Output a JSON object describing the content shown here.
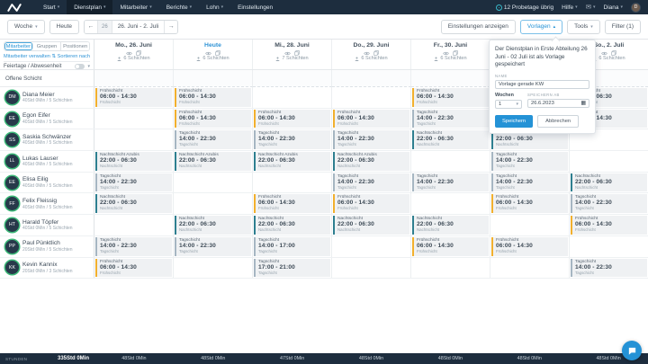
{
  "navbar": {
    "items": [
      {
        "label": "Start",
        "caret": true,
        "active": false
      },
      {
        "label": "Dienstplan",
        "caret": true,
        "active": true
      },
      {
        "label": "Mitarbeiter",
        "caret": true,
        "active": false
      },
      {
        "label": "Berichte",
        "caret": true,
        "active": false
      },
      {
        "label": "Lohn",
        "caret": true,
        "active": false
      },
      {
        "label": "Einstellungen",
        "caret": false,
        "active": false
      }
    ],
    "trial_text": "12 Probetage übrig",
    "help_label": "Hilfe",
    "user_name": "Diana",
    "user_initial": "D"
  },
  "toolbar": {
    "view_select": "Woche",
    "today_button": "Heute",
    "week_number": "26",
    "date_range": "26. Juni - 2. Juli",
    "settings_button": "Einstellungen anzeigen",
    "templates_button": "Vorlagen",
    "tools_button": "Tools",
    "filter_button": "Filter (1)"
  },
  "sidebar": {
    "tabs": [
      {
        "label": "Mitarbeiter",
        "active": true
      },
      {
        "label": "Gruppen",
        "active": false
      },
      {
        "label": "Positionen",
        "active": false
      }
    ],
    "manage_link": "Mitarbeiter verwalten",
    "sort_link": "Sortieren nach",
    "holidays_row": "Feiertage / Abwesenheit",
    "open_shift_label": "Offene Schicht"
  },
  "bottombar": {
    "hours_label": "STUNDEN",
    "total_hours": "335Std 0Min"
  },
  "days": [
    {
      "label": "Mo., 26. Juni",
      "today": false,
      "shifts": "6 Schichten",
      "total": "48Std 0Min"
    },
    {
      "label": "Heute",
      "today": true,
      "shifts": "6 Schichten",
      "total": "48Std 0Min"
    },
    {
      "label": "Mi., 28. Juni",
      "today": false,
      "shifts": "7 Schichten",
      "total": "47Std 0Min"
    },
    {
      "label": "Do., 29. Juni",
      "today": false,
      "shifts": "6 Schichten",
      "total": "48Std 0Min"
    },
    {
      "label": "Fr., 30. Juni",
      "today": false,
      "shifts": "6 Schichten",
      "total": "48Std 0Min"
    },
    {
      "label": "",
      "today": false,
      "shifts": "",
      "total": "48Std 0Min"
    },
    {
      "label": "So., 2. Juli",
      "today": false,
      "shifts": "6 Schichten",
      "total": "48Std 0Min"
    }
  ],
  "shift_colors": {
    "fruh": "#f2b02e",
    "tag": "#a6b6c2",
    "nacht": "#2e7f90"
  },
  "status_ring_color": "#3cb878",
  "accent_color": "#2492d6",
  "employees": [
    {
      "name": "Diana Meier",
      "meta": "40Std 0Min / 5 Schichten",
      "initials": "DM",
      "cells": [
        {
          "variant": "fruh",
          "title": "Frühschicht",
          "time": "06:00 - 14:30",
          "sub": "Frühschicht"
        },
        {
          "variant": "fruh",
          "title": "Frühschicht",
          "time": "06:00 - 14:30",
          "sub": "Frühschicht"
        },
        null,
        null,
        {
          "variant": "fruh",
          "title": "Frühschicht",
          "time": "06:00 - 14:30",
          "sub": "Frühschicht"
        },
        null,
        {
          "variant": "nacht",
          "title": "Nachtschicht",
          "time": "22:00 - 06:30",
          "sub": "Nachtschicht"
        }
      ]
    },
    {
      "name": "Egon Eifer",
      "meta": "40Std 0Min / 5 Schichten",
      "initials": "EE",
      "cells": [
        null,
        {
          "variant": "fruh",
          "title": "Frühschicht",
          "time": "06:00 - 14:30",
          "sub": "Frühschicht"
        },
        {
          "variant": "fruh",
          "title": "Frühschicht",
          "time": "06:00 - 14:30",
          "sub": "Frühschicht"
        },
        {
          "variant": "fruh",
          "title": "Frühschicht",
          "time": "06:00 - 14:30",
          "sub": "Frühschicht"
        },
        {
          "variant": "tag",
          "title": "Tagschicht",
          "time": "14:00 - 22:30",
          "sub": "Tagschicht"
        },
        null,
        {
          "variant": "fruh",
          "title": "Frühschicht",
          "time": "06:00 - 14:30",
          "sub": "Frühschicht"
        }
      ]
    },
    {
      "name": "Saskia Schwänzer",
      "meta": "40Std 0Min / 5 Schichten",
      "initials": "SS",
      "cells": [
        null,
        {
          "variant": "tag",
          "title": "Tagschicht",
          "time": "14:00 - 22:30",
          "sub": "Tagschicht"
        },
        {
          "variant": "tag",
          "title": "Tagschicht",
          "time": "14:00 - 22:30",
          "sub": "Tagschicht"
        },
        {
          "variant": "tag",
          "title": "Tagschicht",
          "time": "14:00 - 22:30",
          "sub": "Tagschicht"
        },
        {
          "variant": "nacht",
          "title": "Nachtschicht",
          "time": "22:00 - 06:30",
          "sub": "Nachtschicht"
        },
        {
          "variant": "nacht",
          "title": "Nachtschicht",
          "time": "22:00 - 06:30",
          "sub": "Nachtschicht"
        },
        null
      ]
    },
    {
      "name": "Lukas Lauser",
      "meta": "40Std 0Min / 5 Schichten",
      "initials": "LL",
      "cells": [
        {
          "variant": "nacht",
          "title": "Nachtschicht Azubis",
          "time": "22:00 - 06:30",
          "sub": "Nachtschicht"
        },
        {
          "variant": "nacht",
          "title": "Nachtschicht Azubis",
          "time": "22:00 - 06:30",
          "sub": "Nachtschicht"
        },
        {
          "variant": "nacht",
          "title": "Nachtschicht Azubis",
          "time": "22:00 - 06:30",
          "sub": "Nachtschicht"
        },
        {
          "variant": "nacht",
          "title": "Nachtschicht Azubis",
          "time": "22:00 - 06:30",
          "sub": "Nachtschicht"
        },
        null,
        {
          "variant": "tag",
          "title": "Tagschicht",
          "time": "14:00 - 22:30",
          "sub": "Tagschicht"
        },
        null
      ]
    },
    {
      "name": "Elisa Eilig",
      "meta": "40Std 0Min / 5 Schichten",
      "initials": "EE",
      "cells": [
        {
          "variant": "tag",
          "title": "Tagschicht",
          "time": "14:00 - 22:30",
          "sub": "Tagschicht"
        },
        null,
        null,
        {
          "variant": "tag",
          "title": "Tagschicht",
          "time": "14:00 - 22:30",
          "sub": "Tagschicht"
        },
        {
          "variant": "tag",
          "title": "Tagschicht",
          "time": "14:00 - 22:30",
          "sub": "Tagschicht"
        },
        {
          "variant": "tag",
          "title": "Tagschicht",
          "time": "14:00 - 22:30",
          "sub": "Tagschicht"
        },
        {
          "variant": "nacht",
          "title": "Nachtschicht",
          "time": "22:00 - 06:30",
          "sub": "Nachtschicht"
        }
      ]
    },
    {
      "name": "Felix Fleissig",
      "meta": "40Std 0Min / 5 Schichten",
      "initials": "FF",
      "cells": [
        {
          "variant": "nacht",
          "title": "Nachtschicht",
          "time": "22:00 - 06:30",
          "sub": "Nachtschicht"
        },
        null,
        {
          "variant": "fruh",
          "title": "Frühschicht",
          "time": "06:00 - 14:30",
          "sub": "Frühschicht"
        },
        {
          "variant": "fruh",
          "title": "Frühschicht",
          "time": "06:00 - 14:30",
          "sub": "Frühschicht"
        },
        null,
        {
          "variant": "fruh",
          "title": "Frühschicht",
          "time": "06:00 - 14:30",
          "sub": "Frühschicht"
        },
        {
          "variant": "tag",
          "title": "Tagschicht",
          "time": "14:00 - 22:30",
          "sub": "Tagschicht"
        }
      ]
    },
    {
      "name": "Harald Töpfer",
      "meta": "40Std 0Min / 5 Schichten",
      "initials": "HT",
      "cells": [
        null,
        {
          "variant": "nacht",
          "title": "Nachtschicht",
          "time": "22:00 - 06:30",
          "sub": "Nachtschicht"
        },
        {
          "variant": "nacht",
          "title": "Nachtschicht",
          "time": "22:00 - 06:30",
          "sub": "Nachtschicht"
        },
        {
          "variant": "nacht",
          "title": "Nachtschicht",
          "time": "22:00 - 06:30",
          "sub": "Nachtschicht"
        },
        {
          "variant": "nacht",
          "title": "Nachtschicht",
          "time": "22:00 - 06:30",
          "sub": "Nachtschicht"
        },
        null,
        {
          "variant": "fruh",
          "title": "Frühschicht",
          "time": "06:00 - 14:30",
          "sub": "Frühschicht"
        }
      ]
    },
    {
      "name": "Paul Pünktlich",
      "meta": "20Std 0Min / 5 Schichten",
      "initials": "PP",
      "cells": [
        {
          "variant": "tag",
          "title": "Tagschicht",
          "time": "14:00 - 22:30",
          "sub": "Tagschicht"
        },
        {
          "variant": "tag",
          "title": "Tagschicht",
          "time": "14:00 - 22:30",
          "sub": "Tagschicht"
        },
        {
          "variant": "tag",
          "title": "Tagschicht",
          "time": "14:00 - 17:00",
          "sub": "Tagschicht"
        },
        null,
        {
          "variant": "fruh",
          "title": "Frühschicht",
          "time": "06:00 - 14:30",
          "sub": "Frühschicht"
        },
        {
          "variant": "fruh",
          "title": "Frühschicht",
          "time": "06:00 - 14:30",
          "sub": "Frühschicht"
        },
        null
      ]
    },
    {
      "name": "Kevin Kannix",
      "meta": "20Std 0Min / 3 Schichten",
      "initials": "KK",
      "cells": [
        {
          "variant": "fruh",
          "title": "Frühschicht",
          "time": "06:00 - 14:30",
          "sub": "Frühschicht"
        },
        null,
        {
          "variant": "tag",
          "title": "Tagschicht",
          "time": "17:00 - 21:00",
          "sub": "Tagschicht"
        },
        null,
        null,
        null,
        {
          "variant": "tag",
          "title": "Tagschicht",
          "time": "14:00 - 22:30",
          "sub": "Tagschicht"
        }
      ]
    }
  ],
  "popover": {
    "title": "Der Dienstplan in Erste Abteilung 26 Juni - 02 Juli ist als Vorlage gespeichert",
    "name_label": "NAME",
    "name_value": "Vorlage gerade KW",
    "weeks_label": "Wochen",
    "weeks_value": "1",
    "save_from_label": "SPEICHERN AB",
    "save_from_value": "26.6.2023",
    "save_button": "Speichern",
    "cancel_button": "Abbrechen"
  },
  "icons": {
    "logo": "wave-mark",
    "trial": "clock-circle",
    "mail": "envelope",
    "caret_down": "▾",
    "caret_up": "▴",
    "arrow_left": "←",
    "arrow_right": "→",
    "sort": "⇅",
    "calendar": "▦",
    "eye": "eye",
    "copy": "copy",
    "person": "person",
    "chat": "chat-bubble"
  }
}
